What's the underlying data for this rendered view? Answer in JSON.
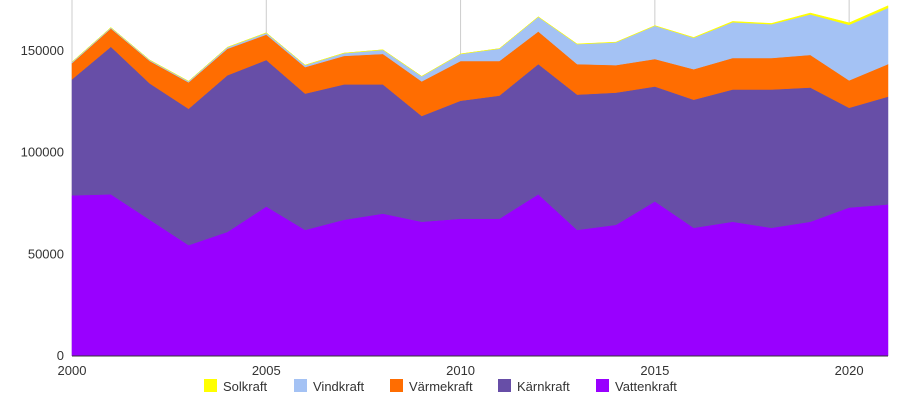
{
  "chart_data": {
    "type": "area",
    "stacked": true,
    "title": "",
    "xlabel": "",
    "ylabel": "",
    "x": [
      2000,
      2001,
      2002,
      2003,
      2004,
      2005,
      2006,
      2007,
      2008,
      2009,
      2010,
      2011,
      2012,
      2013,
      2014,
      2015,
      2016,
      2017,
      2018,
      2019,
      2020,
      2021
    ],
    "xlim": [
      2000,
      2021
    ],
    "ylim": [
      0,
      175000
    ],
    "x_ticks": [
      "2000",
      "2005",
      "2010",
      "2015",
      "2020"
    ],
    "y_ticks": [
      "0",
      "50000",
      "100000",
      "150000"
    ],
    "grid": "vertical",
    "legend_position": "bottom",
    "series": [
      {
        "name": "Vattenkraft",
        "color": "#9900ff",
        "values": [
          79000,
          79500,
          67000,
          54500,
          61000,
          73500,
          62000,
          67000,
          70000,
          66000,
          67500,
          67500,
          79500,
          62000,
          64500,
          76000,
          63000,
          66000,
          63000,
          66000,
          73000,
          74500
        ]
      },
      {
        "name": "Kärnkraft",
        "color": "#674ea7",
        "values": [
          57000,
          72500,
          67000,
          67000,
          77000,
          72000,
          67000,
          66500,
          63500,
          52000,
          58000,
          60500,
          64000,
          66500,
          65000,
          56500,
          63000,
          65000,
          68000,
          66000,
          49000,
          53000
        ]
      },
      {
        "name": "Värmekraft",
        "color": "#ff6d01",
        "values": [
          8000,
          9000,
          11000,
          13000,
          13000,
          12500,
          13000,
          14000,
          15000,
          17000,
          19500,
          17000,
          16000,
          15000,
          13500,
          13500,
          15000,
          15500,
          15500,
          16000,
          13500,
          16000
        ]
      },
      {
        "name": "Vindkraft",
        "color": "#a4c2f4",
        "values": [
          500,
          500,
          500,
          600,
          800,
          900,
          1000,
          1400,
          2000,
          2500,
          3500,
          6100,
          7200,
          9800,
          11200,
          16300,
          15400,
          17600,
          16600,
          19900,
          27300,
          27600
        ]
      },
      {
        "name": "Solkraft",
        "color": "#ffff00",
        "values": [
          0,
          0,
          0,
          0,
          0,
          0,
          0,
          0,
          0,
          0,
          0,
          0,
          100,
          100,
          100,
          100,
          200,
          400,
          400,
          700,
          1000,
          1100
        ]
      }
    ]
  }
}
